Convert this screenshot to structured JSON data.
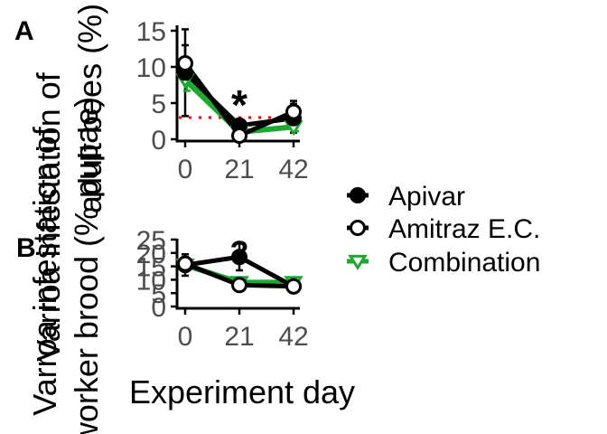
{
  "figure": {
    "xlabel": "Experiment day",
    "ylabel_line1": "Varroa infestation of",
    "ylabel_line2": "worker brood (% pupae)",
    "ylabel_top_line1": "Varroa infestation of",
    "ylabel_top_line2": "adult bees (%)"
  },
  "legend": {
    "items": [
      {
        "label": "Apivar",
        "marker": "filled-circle",
        "color": "#000000"
      },
      {
        "label": "Amitraz E.C.",
        "marker": "open-circle",
        "color": "#000000"
      },
      {
        "label": "Combination",
        "marker": "open-triangle-down",
        "color": "#1aaa2e"
      }
    ]
  },
  "chart_data": [
    {
      "type": "line",
      "panel_label": "A",
      "x": [
        0,
        21,
        42
      ],
      "xticks": [
        "0",
        "21",
        "42"
      ],
      "ylim": [
        0,
        16
      ],
      "yticks": [
        "0",
        "5",
        "10",
        "15"
      ],
      "series": [
        {
          "name": "Apivar",
          "color": "#000000",
          "marker": "filled-circle",
          "values": [
            9.2,
            1.9,
            2.9
          ],
          "err": [
            6.0,
            0.6,
            2.0
          ]
        },
        {
          "name": "Amitraz E.C.",
          "color": "#000000",
          "marker": "open-circle",
          "values": [
            10.5,
            0.5,
            3.8
          ],
          "err": [
            2.5,
            0.5,
            1.5
          ]
        },
        {
          "name": "Combination",
          "color": "#1aaa2e",
          "marker": "open-triangle-down",
          "values": [
            8.2,
            1.0,
            1.7
          ],
          "err": [
            1.5,
            0.4,
            0.6
          ]
        }
      ],
      "reference_line": {
        "y": 3,
        "color": "#ff0000",
        "style": "dotted"
      },
      "annotations": [
        {
          "text": "*",
          "x": 21
        }
      ],
      "grid": false
    },
    {
      "type": "line",
      "panel_label": "B",
      "x": [
        0,
        21,
        42
      ],
      "xticks": [
        "0",
        "21",
        "42"
      ],
      "ylim": [
        0,
        26
      ],
      "yticks": [
        "0",
        "5",
        "10",
        "15",
        "20",
        "25"
      ],
      "series": [
        {
          "name": "Apivar",
          "color": "#000000",
          "marker": "filled-circle",
          "values": [
            15.5,
            18.5,
            7.5
          ],
          "err": [
            4.0,
            5.0,
            2.0
          ]
        },
        {
          "name": "Amitraz E.C.",
          "color": "#000000",
          "marker": "open-circle",
          "values": [
            16.0,
            8.0,
            7.5
          ],
          "err": [
            2.5,
            1.5,
            1.5
          ]
        },
        {
          "name": "Combination",
          "color": "#1aaa2e",
          "marker": "open-triangle-down",
          "values": [
            15.5,
            9.0,
            9.0
          ],
          "err": [
            2.0,
            1.5,
            1.5
          ]
        }
      ],
      "annotations": [
        {
          "text": "?",
          "x": 21
        }
      ],
      "grid": false
    }
  ]
}
